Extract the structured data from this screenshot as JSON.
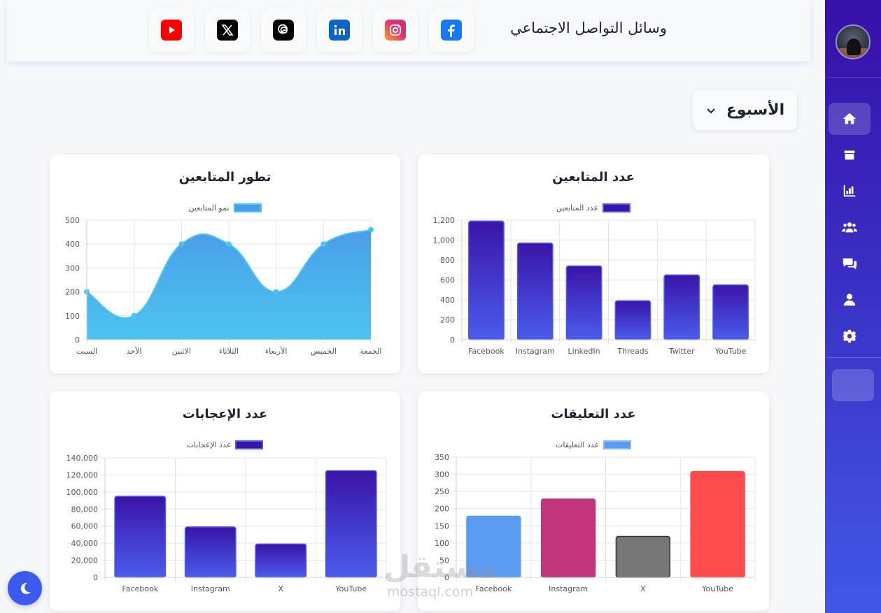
{
  "sidebar": {
    "avatar_alt": "user-avatar",
    "items": [
      {
        "name": "home-icon",
        "active": true
      },
      {
        "name": "box-icon",
        "active": false
      },
      {
        "name": "chart-icon",
        "active": false
      },
      {
        "name": "users-icon",
        "active": false
      },
      {
        "name": "comments-icon",
        "active": false
      },
      {
        "name": "user-icon",
        "active": false
      },
      {
        "name": "gear-icon",
        "active": false
      }
    ]
  },
  "header": {
    "title": "وسائل التواصل الاجتماعي",
    "socials": [
      {
        "name": "youtube-icon",
        "color": "#ff0000"
      },
      {
        "name": "x-icon",
        "color": "#000000"
      },
      {
        "name": "threads-icon",
        "color": "#000000"
      },
      {
        "name": "linkedin-icon",
        "color": "#0a66c2"
      },
      {
        "name": "instagram-icon",
        "color": "#e1306c"
      },
      {
        "name": "facebook-icon",
        "color": "#1877f2"
      }
    ]
  },
  "period_select": {
    "value": "الأسبوع"
  },
  "chart_data": [
    {
      "id": "followers",
      "type": "bar",
      "title": "عدد المتابعين",
      "categories": [
        "Facebook",
        "Instagram",
        "LinkedIn",
        "Threads",
        "Twitter",
        "YouTube"
      ],
      "series": [
        {
          "name": "عدد المتابعين",
          "values": [
            1190,
            970,
            740,
            390,
            650,
            550
          ]
        }
      ],
      "ylim": [
        0,
        1200
      ],
      "yticks": [
        "0",
        "200",
        "400",
        "600",
        "800",
        "1,000",
        "1,200"
      ],
      "colors": [
        "#3a14a8",
        "#4a5cec"
      ],
      "grid": true,
      "legend": "top"
    },
    {
      "id": "followers_growth",
      "type": "area",
      "title": "تطور المتابعين",
      "categories": [
        "السبت",
        "الأحد",
        "الاثنين",
        "الثلاثاء",
        "الأربعاء",
        "الخميس",
        "الجمعة"
      ],
      "series": [
        {
          "name": "نمو المتابعين",
          "values": [
            200,
            100,
            400,
            400,
            200,
            400,
            460
          ]
        }
      ],
      "ylim": [
        0,
        500
      ],
      "yticks": [
        "0",
        "100",
        "200",
        "300",
        "400",
        "500"
      ],
      "colors": [
        "#4cc4f0",
        "#4a9ee8"
      ],
      "grid": true,
      "legend": "top"
    },
    {
      "id": "comments",
      "type": "bar",
      "title": "عدد التعليقات",
      "categories": [
        "Facebook",
        "Instagram",
        "X",
        "YouTube"
      ],
      "series": [
        {
          "name": "عدد التعليقات",
          "values": [
            178,
            228,
            119,
            308
          ]
        }
      ],
      "ylim": [
        0,
        350
      ],
      "yticks": [
        "0",
        "50",
        "100",
        "150",
        "200",
        "250",
        "300",
        "350"
      ],
      "bar_colors": [
        "#5a9cf0",
        "#c1357e",
        "#777777",
        "#ff4b4b"
      ],
      "legend_color": "#5a9cf0",
      "grid": true,
      "legend": "top"
    },
    {
      "id": "likes",
      "type": "bar",
      "title": "عدد الإعجابات",
      "categories": [
        "Facebook",
        "Instagram",
        "X",
        "YouTube"
      ],
      "series": [
        {
          "name": "عدد الإعجابات",
          "values": [
            95000,
            59000,
            39000,
            125000
          ]
        }
      ],
      "ylim": [
        0,
        140000
      ],
      "yticks": [
        "0",
        "20,000",
        "40,000",
        "60,000",
        "80,000",
        "100,000",
        "120,000",
        "140,000"
      ],
      "colors": [
        "#3a14a8",
        "#4a5cec"
      ],
      "grid": true,
      "legend": "top"
    }
  ],
  "watermark": {
    "text": "مستقل",
    "sub": "mostaql.com"
  },
  "theme_toggle": {
    "icon": "moon-icon"
  }
}
